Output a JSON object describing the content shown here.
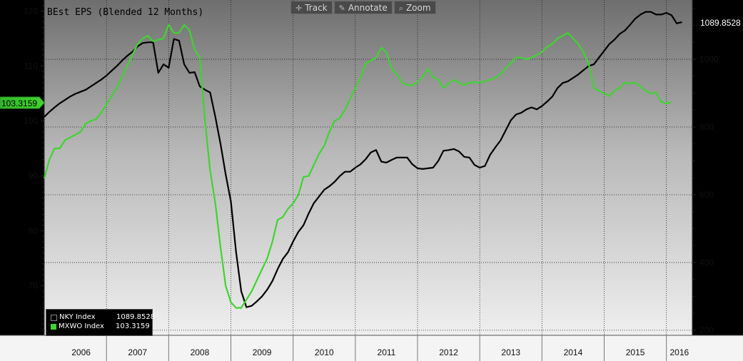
{
  "toolbar": {
    "track_label": "Track",
    "annotate_label": "Annotate",
    "zoom_label": "Zoom",
    "track_icon": "crosshair-icon",
    "annotate_icon": "pencil-icon",
    "zoom_icon": "magnifier-icon"
  },
  "chart_data": {
    "type": "line",
    "title": "BEst EPS (Blended 12 Months)",
    "x_range": [
      "2006-01",
      "2016-06"
    ],
    "x_ticks": [
      "2006",
      "2007",
      "2008",
      "2009",
      "2010",
      "2011",
      "2012",
      "2013",
      "2014",
      "2015",
      "2016"
    ],
    "y_left": {
      "range": [
        61,
        122
      ],
      "ticks": [
        "70",
        "80",
        "90",
        "100",
        "110",
        "120"
      ]
    },
    "y_right": {
      "range": [
        185,
        1175
      ],
      "ticks": [
        "200",
        "400",
        "600",
        "800",
        "1000"
      ]
    },
    "grid": "dotted",
    "legend_position": "bottom-left",
    "series": [
      {
        "name": "NKY Index",
        "axis": "right",
        "color": "#000000",
        "last_value": "1089.8528",
        "points": [
          [
            "2006-01",
            830
          ],
          [
            "2006-02",
            845
          ],
          [
            "2006-03",
            858
          ],
          [
            "2006-04",
            870
          ],
          [
            "2006-05",
            880
          ],
          [
            "2006-06",
            890
          ],
          [
            "2006-07",
            898
          ],
          [
            "2006-08",
            904
          ],
          [
            "2006-09",
            910
          ],
          [
            "2006-10",
            920
          ],
          [
            "2006-11",
            930
          ],
          [
            "2006-12",
            940
          ],
          [
            "2007-01",
            952
          ],
          [
            "2007-02",
            966
          ],
          [
            "2007-03",
            980
          ],
          [
            "2007-04",
            996
          ],
          [
            "2007-05",
            1010
          ],
          [
            "2007-06",
            1022
          ],
          [
            "2007-07",
            1038
          ],
          [
            "2007-08",
            1048
          ],
          [
            "2007-09",
            1050
          ],
          [
            "2007-10",
            1050
          ],
          [
            "2007-11",
            960
          ],
          [
            "2007-12",
            985
          ],
          [
            "2008-01",
            975
          ],
          [
            "2008-02",
            1060
          ],
          [
            "2008-03",
            1055
          ],
          [
            "2008-04",
            985
          ],
          [
            "2008-05",
            960
          ],
          [
            "2008-06",
            962
          ],
          [
            "2008-07",
            920
          ],
          [
            "2008-08",
            910
          ],
          [
            "2008-09",
            902
          ],
          [
            "2008-10",
            830
          ],
          [
            "2008-11",
            750
          ],
          [
            "2008-12",
            660
          ],
          [
            "2009-01",
            580
          ],
          [
            "2009-02",
            430
          ],
          [
            "2009-03",
            315
          ],
          [
            "2009-04",
            268
          ],
          [
            "2009-05",
            272
          ],
          [
            "2009-06",
            285
          ],
          [
            "2009-07",
            300
          ],
          [
            "2009-08",
            320
          ],
          [
            "2009-09",
            345
          ],
          [
            "2009-10",
            380
          ],
          [
            "2009-11",
            410
          ],
          [
            "2009-12",
            430
          ],
          [
            "2010-01",
            462
          ],
          [
            "2010-02",
            490
          ],
          [
            "2010-03",
            510
          ],
          [
            "2010-04",
            545
          ],
          [
            "2010-05",
            575
          ],
          [
            "2010-06",
            595
          ],
          [
            "2010-07",
            615
          ],
          [
            "2010-08",
            625
          ],
          [
            "2010-09",
            638
          ],
          [
            "2010-10",
            655
          ],
          [
            "2010-11",
            668
          ],
          [
            "2010-12",
            668
          ],
          [
            "2011-01",
            680
          ],
          [
            "2011-02",
            690
          ],
          [
            "2011-03",
            705
          ],
          [
            "2011-04",
            725
          ],
          [
            "2011-05",
            732
          ],
          [
            "2011-06",
            698
          ],
          [
            "2011-07",
            695
          ],
          [
            "2011-08",
            703
          ],
          [
            "2011-09",
            710
          ],
          [
            "2011-10",
            710
          ],
          [
            "2011-11",
            710
          ],
          [
            "2011-12",
            690
          ],
          [
            "2012-01",
            678
          ],
          [
            "2012-02",
            676
          ],
          [
            "2012-03",
            678
          ],
          [
            "2012-04",
            680
          ],
          [
            "2012-05",
            700
          ],
          [
            "2012-06",
            730
          ],
          [
            "2012-07",
            732
          ],
          [
            "2012-08",
            735
          ],
          [
            "2012-09",
            728
          ],
          [
            "2012-10",
            712
          ],
          [
            "2012-11",
            710
          ],
          [
            "2012-12",
            688
          ],
          [
            "2013-01",
            680
          ],
          [
            "2013-02",
            685
          ],
          [
            "2013-03",
            718
          ],
          [
            "2013-04",
            740
          ],
          [
            "2013-05",
            760
          ],
          [
            "2013-06",
            790
          ],
          [
            "2013-07",
            820
          ],
          [
            "2013-08",
            837
          ],
          [
            "2013-09",
            842
          ],
          [
            "2013-10",
            852
          ],
          [
            "2013-11",
            858
          ],
          [
            "2013-12",
            852
          ],
          [
            "2014-01",
            862
          ],
          [
            "2014-02",
            875
          ],
          [
            "2014-03",
            890
          ],
          [
            "2014-04",
            915
          ],
          [
            "2014-05",
            930
          ],
          [
            "2014-06",
            935
          ],
          [
            "2014-07",
            945
          ],
          [
            "2014-08",
            955
          ],
          [
            "2014-09",
            968
          ],
          [
            "2014-10",
            980
          ],
          [
            "2014-11",
            985
          ],
          [
            "2014-12",
            1005
          ],
          [
            "2015-01",
            1025
          ],
          [
            "2015-02",
            1045
          ],
          [
            "2015-03",
            1058
          ],
          [
            "2015-04",
            1075
          ],
          [
            "2015-05",
            1085
          ],
          [
            "2015-06",
            1102
          ],
          [
            "2015-07",
            1120
          ],
          [
            "2015-08",
            1132
          ],
          [
            "2015-09",
            1140
          ],
          [
            "2015-10",
            1140
          ],
          [
            "2015-11",
            1132
          ],
          [
            "2015-12",
            1132
          ],
          [
            "2016-01",
            1137
          ],
          [
            "2016-02",
            1130
          ],
          [
            "2016-03",
            1106
          ],
          [
            "2016-04",
            1110
          ]
        ]
      },
      {
        "name": "MXWO Index",
        "axis": "left",
        "color": "#3fd430",
        "last_value": "103.3159",
        "points": [
          [
            "2006-01",
            89.5
          ],
          [
            "2006-02",
            93
          ],
          [
            "2006-03",
            95
          ],
          [
            "2006-04",
            95
          ],
          [
            "2006-05",
            96.5
          ],
          [
            "2006-06",
            97
          ],
          [
            "2006-07",
            97.5
          ],
          [
            "2006-08",
            98
          ],
          [
            "2006-09",
            99.5
          ],
          [
            "2006-10",
            100
          ],
          [
            "2006-11",
            100.3
          ],
          [
            "2006-12",
            101.5
          ],
          [
            "2007-01",
            103
          ],
          [
            "2007-02",
            104.5
          ],
          [
            "2007-03",
            106
          ],
          [
            "2007-04",
            108
          ],
          [
            "2007-05",
            110
          ],
          [
            "2007-06",
            112
          ],
          [
            "2007-07",
            114
          ],
          [
            "2007-08",
            115
          ],
          [
            "2007-09",
            115.5
          ],
          [
            "2007-10",
            114.5
          ],
          [
            "2007-11",
            114.8
          ],
          [
            "2007-12",
            115
          ],
          [
            "2008-01",
            117.5
          ],
          [
            "2008-02",
            116
          ],
          [
            "2008-03",
            116
          ],
          [
            "2008-04",
            117.5
          ],
          [
            "2008-05",
            116.5
          ],
          [
            "2008-06",
            113
          ],
          [
            "2008-07",
            111.5
          ],
          [
            "2008-08",
            100
          ],
          [
            "2008-09",
            91
          ],
          [
            "2008-10",
            85
          ],
          [
            "2008-11",
            77
          ],
          [
            "2008-12",
            70
          ],
          [
            "2009-01",
            67
          ],
          [
            "2009-02",
            66
          ],
          [
            "2009-03",
            66
          ],
          [
            "2009-04",
            67.5
          ],
          [
            "2009-05",
            69
          ],
          [
            "2009-06",
            71
          ],
          [
            "2009-07",
            73
          ],
          [
            "2009-08",
            75
          ],
          [
            "2009-09",
            78
          ],
          [
            "2009-10",
            82
          ],
          [
            "2009-11",
            82.5
          ],
          [
            "2009-12",
            84
          ],
          [
            "2010-01",
            85
          ],
          [
            "2010-02",
            86.5
          ],
          [
            "2010-03",
            89.8
          ],
          [
            "2010-04",
            90
          ],
          [
            "2010-05",
            92
          ],
          [
            "2010-06",
            94
          ],
          [
            "2010-07",
            95.5
          ],
          [
            "2010-08",
            98
          ],
          [
            "2010-09",
            100
          ],
          [
            "2010-10",
            100.5
          ],
          [
            "2010-11",
            102
          ],
          [
            "2010-12",
            104
          ],
          [
            "2011-01",
            106
          ],
          [
            "2011-02",
            107.8
          ],
          [
            "2011-03",
            110.5
          ],
          [
            "2011-04",
            111
          ],
          [
            "2011-05",
            111.5
          ],
          [
            "2011-06",
            113.3
          ],
          [
            "2011-07",
            112.5
          ],
          [
            "2011-08",
            109.5
          ],
          [
            "2011-09",
            108.5
          ],
          [
            "2011-10",
            107
          ],
          [
            "2011-11",
            106.5
          ],
          [
            "2011-12",
            106.5
          ],
          [
            "2012-01",
            107
          ],
          [
            "2012-02",
            108
          ],
          [
            "2012-03",
            109.5
          ],
          [
            "2012-04",
            108
          ],
          [
            "2012-05",
            107.5
          ],
          [
            "2012-06",
            106
          ],
          [
            "2012-07",
            106.8
          ],
          [
            "2012-08",
            107.5
          ],
          [
            "2012-09",
            107
          ],
          [
            "2012-10",
            106.5
          ],
          [
            "2012-11",
            107
          ],
          [
            "2012-12",
            107
          ],
          [
            "2013-01",
            107
          ],
          [
            "2013-02",
            107.2
          ],
          [
            "2013-03",
            107.5
          ],
          [
            "2013-04",
            107.8
          ],
          [
            "2013-05",
            108.5
          ],
          [
            "2013-06",
            109.5
          ],
          [
            "2013-07",
            110.5
          ],
          [
            "2013-08",
            111.5
          ],
          [
            "2013-09",
            111.5
          ],
          [
            "2013-10",
            111.2
          ],
          [
            "2013-11",
            111.5
          ],
          [
            "2013-12",
            112
          ],
          [
            "2014-01",
            112.5
          ],
          [
            "2014-02",
            113.5
          ],
          [
            "2014-03",
            114
          ],
          [
            "2014-04",
            115
          ],
          [
            "2014-05",
            115.5
          ],
          [
            "2014-06",
            116
          ],
          [
            "2014-07",
            115
          ],
          [
            "2014-08",
            114
          ],
          [
            "2014-09",
            112.5
          ],
          [
            "2014-10",
            110.5
          ],
          [
            "2014-11",
            106
          ],
          [
            "2014-12",
            105.5
          ],
          [
            "2015-01",
            105
          ],
          [
            "2015-02",
            104.5
          ],
          [
            "2015-03",
            105.5
          ],
          [
            "2015-04",
            106
          ],
          [
            "2015-05",
            107
          ],
          [
            "2015-06",
            106.8
          ],
          [
            "2015-07",
            107
          ],
          [
            "2015-08",
            106.3
          ],
          [
            "2015-09",
            105.5
          ],
          [
            "2015-10",
            105
          ],
          [
            "2015-11",
            105.2
          ],
          [
            "2015-12",
            103.5
          ],
          [
            "2016-01",
            103.2
          ],
          [
            "2016-02",
            103.4
          ]
        ]
      }
    ]
  }
}
